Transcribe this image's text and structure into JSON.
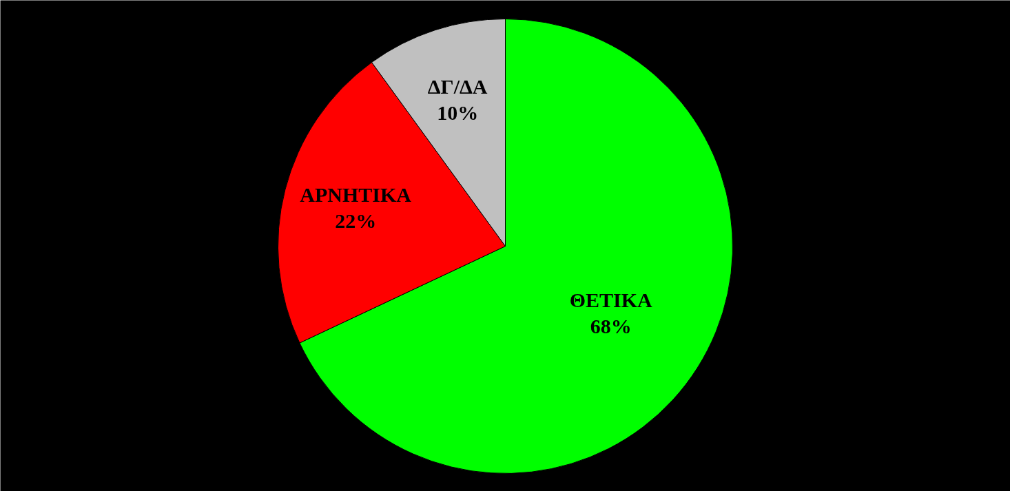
{
  "chart_data": {
    "type": "pie",
    "categories": [
      "ΘΕΤΙΚΑ",
      "ΑΡΝΗΤΙΚΑ",
      "ΔΓ/ΔΑ"
    ],
    "values": [
      68,
      22,
      10
    ],
    "colors": [
      "#00ff00",
      "#ff0000",
      "#c0c0c0"
    ],
    "value_labels": [
      "68%",
      "22%",
      "10%"
    ]
  }
}
